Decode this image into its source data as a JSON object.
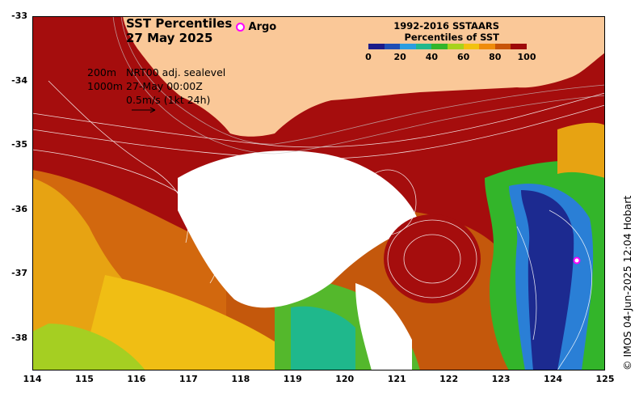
{
  "title": {
    "line1": "SST Percentiles",
    "line2": "27 May 2025"
  },
  "argo": {
    "label": "Argo",
    "marker_color": "#ff00ff"
  },
  "info": {
    "depth_200": "200m",
    "depth_1000": "1000m",
    "model": "NRT00 adj. sealevel",
    "time": "27-May 00:00Z",
    "scale": "0.5m/s (1kt 24h)"
  },
  "legend": {
    "title_line1": "1992-2016 SSTAARS",
    "title_line2": "Percentiles of SST",
    "ticks": [
      "0",
      "20",
      "40",
      "60",
      "80",
      "100"
    ],
    "colors": [
      "#1c1c8a",
      "#1f4fb5",
      "#2a9de0",
      "#1fb88c",
      "#33b52a",
      "#a8d21c",
      "#f2c20f",
      "#ef8c0c",
      "#c8540a",
      "#9e0a0a"
    ]
  },
  "axes": {
    "x_ticks": [
      "114",
      "115",
      "116",
      "117",
      "118",
      "119",
      "120",
      "121",
      "122",
      "123",
      "124",
      "125"
    ],
    "y_ticks": [
      "-33",
      "-34",
      "-35",
      "-36",
      "-37",
      "-38"
    ]
  },
  "credit": "© IMOS 04-Jun-2025 12:04 Hobart",
  "colors": {
    "land": "#fac898",
    "very_warm": "#a70b0b",
    "warm": "#c65a0c",
    "cold": "#1c2a90"
  }
}
